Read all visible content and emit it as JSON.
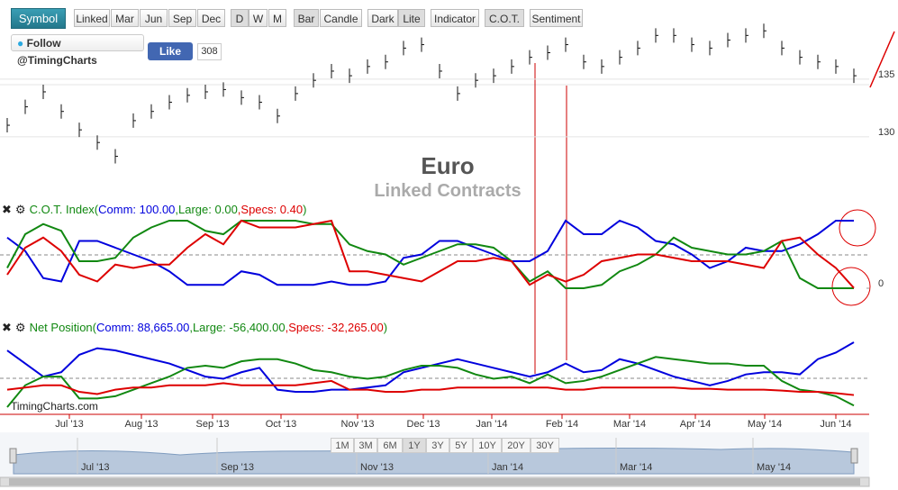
{
  "toolbar": {
    "buttons": [
      "Symbol",
      "Linked",
      "Mar",
      "Jun",
      "Sep",
      "Dec",
      "D",
      "W",
      "M",
      "Bar",
      "Candle",
      "Dark",
      "Lite",
      "Indicator",
      "C.O.T.",
      "Sentiment"
    ]
  },
  "social": {
    "follow": "Follow @TimingCharts",
    "like": "Like",
    "like_count": "308"
  },
  "title": "Euro",
  "subtitle": "Linked Contracts",
  "price": {
    "ylim": [
      126.7,
      140
    ],
    "yticks": [
      130,
      135
    ],
    "values": [
      131.0,
      132.6,
      133.9,
      132.2,
      130.6,
      129.5,
      128.3,
      131.4,
      132.2,
      133.0,
      133.6,
      133.9,
      134.1,
      133.4,
      133.0,
      131.8,
      133.75,
      134.9,
      135.7,
      135.3,
      136.1,
      136.5,
      137.7,
      138.0,
      135.7,
      133.75,
      134.9,
      135.3,
      136.1,
      136.9,
      137.3,
      138.0,
      136.5,
      136.1,
      136.9,
      137.7,
      138.8,
      138.8,
      138.0,
      137.7,
      138.4,
      138.8,
      139.2,
      137.7,
      136.9,
      136.5,
      136.1,
      135.3
    ]
  },
  "cot_index": {
    "header": [
      "C.O.T. Index(",
      "Comm: 100.00",
      ",Large: 0.00",
      ",Specs: 0.40",
      ")"
    ],
    "ylim": [
      0,
      100
    ],
    "yticks": [
      0
    ],
    "series": [
      {
        "name": "Comm",
        "color": "#0000dd",
        "values": [
          75,
          55,
          15,
          10,
          70,
          70,
          60,
          50,
          40,
          25,
          5,
          5,
          5,
          25,
          20,
          5,
          5,
          5,
          10,
          5,
          5,
          10,
          45,
          50,
          70,
          70,
          60,
          50,
          40,
          40,
          55,
          100,
          80,
          80,
          100,
          90,
          70,
          65,
          50,
          30,
          40,
          60,
          55,
          55,
          65,
          80,
          100,
          100
        ]
      },
      {
        "name": "Large",
        "color": "#118811",
        "values": [
          30,
          80,
          95,
          85,
          40,
          40,
          45,
          75,
          90,
          100,
          100,
          85,
          80,
          100,
          100,
          100,
          100,
          95,
          95,
          65,
          55,
          50,
          35,
          45,
          55,
          65,
          65,
          60,
          40,
          10,
          25,
          0,
          0,
          5,
          25,
          35,
          50,
          75,
          60,
          55,
          50,
          50,
          55,
          70,
          15,
          0,
          0,
          0
        ]
      },
      {
        "name": "Specs",
        "color": "#dd0000",
        "values": [
          20,
          60,
          75,
          55,
          20,
          10,
          35,
          30,
          35,
          35,
          60,
          80,
          65,
          100,
          90,
          90,
          90,
          95,
          100,
          25,
          25,
          20,
          15,
          10,
          25,
          40,
          40,
          45,
          40,
          5,
          20,
          10,
          20,
          40,
          45,
          50,
          50,
          45,
          40,
          40,
          40,
          35,
          30,
          70,
          75,
          50,
          30,
          0.4
        ]
      }
    ]
  },
  "net_position": {
    "header": [
      "Net Position(",
      "Comm: 88,665.00",
      ",Large: -56,400.00",
      ",Specs: -32,265.00",
      ")"
    ],
    "series": [
      {
        "name": "Comm",
        "color": "#0000dd",
        "values": [
          70000,
          40000,
          10000,
          20000,
          60000,
          75000,
          70000,
          60000,
          50000,
          40000,
          25000,
          10000,
          5000,
          20000,
          30000,
          -20000,
          -25000,
          -25000,
          -20000,
          -20000,
          -15000,
          -10000,
          20000,
          30000,
          40000,
          50000,
          40000,
          30000,
          20000,
          10000,
          20000,
          40000,
          20000,
          25000,
          50000,
          40000,
          25000,
          10000,
          0,
          -10000,
          0,
          15000,
          20000,
          20000,
          15000,
          50000,
          65000,
          88665
        ]
      },
      {
        "name": "Large",
        "color": "#118811",
        "values": [
          -60000,
          -10000,
          10000,
          10000,
          -40000,
          -40000,
          -35000,
          -20000,
          -5000,
          10000,
          30000,
          35000,
          30000,
          45000,
          50000,
          50000,
          40000,
          25000,
          20000,
          10000,
          5000,
          10000,
          25000,
          35000,
          35000,
          30000,
          15000,
          5000,
          10000,
          -5000,
          15000,
          -5000,
          0,
          10000,
          25000,
          40000,
          55000,
          50000,
          45000,
          40000,
          40000,
          35000,
          35000,
          0,
          -20000,
          -25000,
          -35000,
          -56400
        ]
      },
      {
        "name": "Specs",
        "color": "#dd0000",
        "values": [
          -20000,
          -15000,
          -10000,
          -10000,
          -25000,
          -30000,
          -20000,
          -15000,
          -15000,
          -10000,
          -10000,
          -10000,
          -5000,
          -10000,
          -10000,
          -10000,
          -10000,
          -5000,
          0,
          -20000,
          -20000,
          -25000,
          -25000,
          -20000,
          -20000,
          -15000,
          -15000,
          -15000,
          -15000,
          -15000,
          -15000,
          -20000,
          -20000,
          -15000,
          -15000,
          -15000,
          -15000,
          -15000,
          -18000,
          -18000,
          -20000,
          -20000,
          -20000,
          -22000,
          -25000,
          -25000,
          -28000,
          -32265
        ]
      }
    ]
  },
  "watermark": "TimingCharts.com",
  "x_axis": {
    "labels": [
      "Jul '13",
      "Aug '13",
      "Sep '13",
      "Oct '13",
      "Nov '13",
      "Dec '13",
      "Jan '14",
      "Feb '14",
      "Mar '14",
      "Apr '14",
      "May '14",
      "Jun '14"
    ]
  },
  "navigator": {
    "ranges": [
      "1M",
      "3M",
      "6M",
      "1Y",
      "3Y",
      "5Y",
      "10Y",
      "20Y",
      "30Y"
    ],
    "labels": [
      "Jul '13",
      "Sep '13",
      "Nov '13",
      "Jan '14",
      "Mar '14",
      "May '14"
    ]
  }
}
